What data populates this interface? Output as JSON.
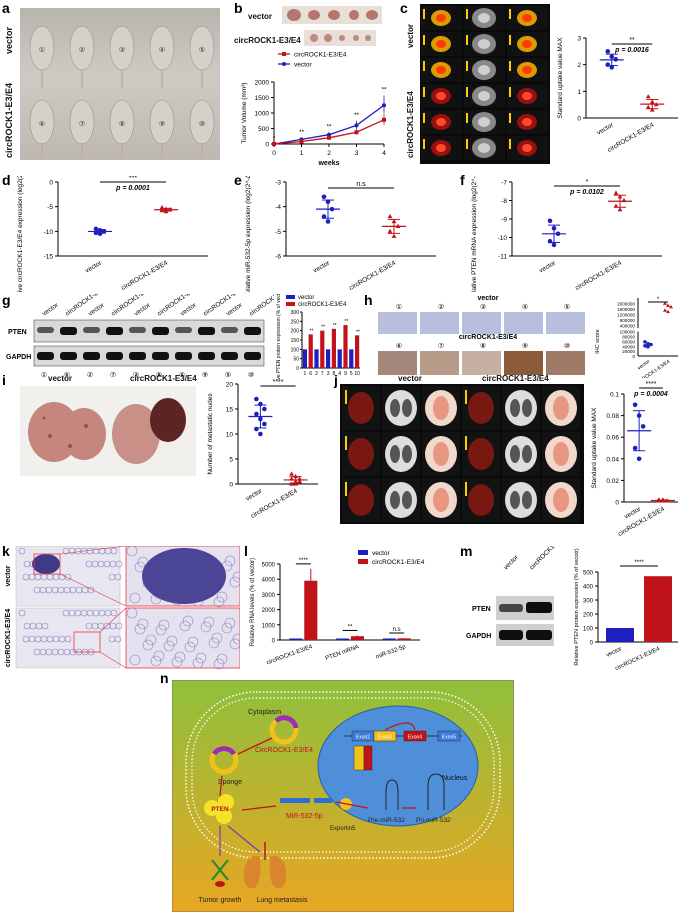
{
  "panel_labels": [
    "a",
    "b",
    "c",
    "d",
    "e",
    "f",
    "g",
    "h",
    "i",
    "j",
    "k",
    "l",
    "m",
    "n"
  ],
  "a": {
    "row_labels": [
      "vector",
      "circROCK1-E3/E4"
    ],
    "mouse_ids": [
      "①",
      "②",
      "③",
      "④",
      "⑤",
      "⑥",
      "⑦",
      "⑧",
      "⑨",
      "⑩"
    ]
  },
  "b": {
    "tumor_row_labels": [
      "vector",
      "circROCK1-E3/E4"
    ],
    "legend": [
      "circROCK1-E3/E4",
      "vector"
    ],
    "ylabel": "Tumor Volume (mm³)",
    "xlabel": "weeks",
    "sig": [
      "*",
      "**",
      "**",
      "**",
      "**"
    ]
  },
  "c": {
    "row_labels": [
      "vector",
      "circROCK1-E3/E4"
    ],
    "ylabel": "Standard uptake value MAX",
    "sig": "**",
    "p": "p = 0.0016",
    "x_ticks": [
      "vector",
      "circROCK1-E3/E4"
    ]
  },
  "d": {
    "ylabel": "Relative circROCK1-E3/E4 expression (log2(2^-ΔCt) method)",
    "sig": "***",
    "p": "p = 0.0001",
    "x_ticks": [
      "vector",
      "circROCK1-E3/E4"
    ]
  },
  "e": {
    "ylabel": "Relative miR-532-5p expression (log2(2^-ΔCt) method)",
    "sig": "n.s",
    "x_ticks": [
      "vector",
      "circROCK1-E3/E4"
    ]
  },
  "f": {
    "ylabel": "Relative PTEN mRNA expression (log2(2^-ΔCt) method)",
    "sig": "*",
    "p": "p = 0.0102",
    "x_ticks": [
      "vector",
      "circROCK1-E3/E4"
    ]
  },
  "g": {
    "lane_labels": [
      "vector",
      "circROCK1-E3/E4",
      "vector",
      "circROCK1-E3/E4",
      "vector",
      "circROCK1-E3/E4",
      "vector",
      "circROCK1-E3/E4",
      "vector",
      "circROCK1-E3/E4"
    ],
    "lane_ids": [
      "①",
      "⑥",
      "②",
      "⑦",
      "③",
      "⑧",
      "④",
      "⑨",
      "⑤",
      "⑩"
    ],
    "blots": [
      "PTEN",
      "GAPDH"
    ],
    "legend": [
      "vector",
      "circROCK1-E3/E4"
    ],
    "ylabel": "Relative PTEN protein expression (% of vector)",
    "x_ticks": [
      "1",
      "6",
      "2",
      "7",
      "3",
      "8",
      "4",
      "9",
      "5",
      "10"
    ]
  },
  "h": {
    "row_labels": [
      "vector",
      "circROCK1-E3/E4"
    ],
    "ids_top": [
      "①",
      "②",
      "③",
      "④",
      "⑤"
    ],
    "ids_bottom": [
      "⑥",
      "⑦",
      "⑧",
      "⑨",
      "⑩"
    ],
    "ylabel": "IHC score",
    "sig": "*",
    "x_ticks": [
      "vector",
      "circROCK1-E3/E4"
    ]
  },
  "i": {
    "col_labels": [
      "vector",
      "circROCK1-E3/E4"
    ],
    "ylabel": "Number of metastatic nudes",
    "sig": "****",
    "x_ticks": [
      "vector",
      "circROCK1-E3/E4"
    ]
  },
  "j": {
    "col_labels": [
      "vector",
      "circROCK1-E3/E4"
    ],
    "ylabel": "Standard uptake value MAX",
    "sig": "****",
    "p": "p = 0.0004",
    "x_ticks": [
      "vector",
      "circROCK1-E3/E4"
    ]
  },
  "k": {
    "row_labels": [
      "vector",
      "circROCK1-E3/E4"
    ]
  },
  "l": {
    "legend": [
      "vector",
      "circROCK1-E3/E4"
    ],
    "ylabel": "Relative RNA levels (% of vector)",
    "x_ticks": [
      "circROCK1-E3/E4",
      "PTEN mRNA",
      "miR-532-5p"
    ],
    "sig": [
      "****",
      "**",
      "n.s"
    ]
  },
  "m": {
    "lane_labels": [
      "vector",
      "circROCK1-E3/E4"
    ],
    "blots": [
      "PTEN",
      "GAPDH"
    ],
    "ylabel": "Relative PTEN protein expression (% of vecotr)",
    "sig": "****",
    "x_ticks": [
      "vector",
      "circROCK1-E3/E4"
    ]
  },
  "n": {
    "cytoplasm": "Cytoplasm",
    "nucleus": "Nucleus",
    "circ": "CircROCK1-E3/E4",
    "sponge": "Sponge",
    "mir": "MiR-532-5p",
    "exportin": "Exportin5",
    "pre": "Pre-miR-532",
    "pri": "Pri-miR-532",
    "pten": "PTEN",
    "exons": [
      "Exon2",
      "Exon3",
      "Exon4",
      "Exon5"
    ],
    "tumor": "Tumor growth",
    "lung": "Lung metastasis"
  },
  "chart_data": [
    {
      "type": "line",
      "panel": "b",
      "x": [
        0,
        1,
        2,
        3,
        4
      ],
      "xlabel": "weeks",
      "ylabel": "Tumor Volume (mm³)",
      "ylim": [
        0,
        2000
      ],
      "yticks": [
        0,
        500,
        1000,
        1500,
        2000
      ],
      "series": [
        {
          "name": "vector",
          "values": [
            0,
            150,
            300,
            600,
            1250
          ]
        },
        {
          "name": "circROCK1-E3/E4",
          "values": [
            0,
            80,
            200,
            380,
            780
          ]
        }
      ]
    },
    {
      "type": "scatter",
      "panel": "c",
      "categories": [
        "vector",
        "circROCK1-E3/E4"
      ],
      "ylim": [
        0,
        3
      ],
      "yticks": [
        0,
        1,
        2,
        3
      ],
      "series": [
        {
          "name": "vector",
          "values": [
            2.5,
            2.3,
            2.2,
            2.0,
            1.9
          ]
        },
        {
          "name": "circROCK1-E3/E4",
          "values": [
            0.8,
            0.6,
            0.5,
            0.4,
            0.3
          ]
        }
      ]
    },
    {
      "type": "scatter",
      "panel": "d",
      "categories": [
        "vector",
        "circROCK1-E3/E4"
      ],
      "ylim": [
        -15,
        0
      ],
      "yticks": [
        -15,
        -10,
        -5,
        0
      ],
      "series": [
        {
          "name": "vector",
          "values": [
            -9.5,
            -9.8,
            -10,
            -10.3,
            -10.5
          ]
        },
        {
          "name": "circROCK1-E3/E4",
          "values": [
            -5.2,
            -5.5,
            -5.6,
            -5.8,
            -6.0
          ]
        }
      ]
    },
    {
      "type": "scatter",
      "panel": "e",
      "categories": [
        "vector",
        "circROCK1-E3/E4"
      ],
      "ylim": [
        -6,
        -3
      ],
      "yticks": [
        -6,
        -5,
        -4,
        -3
      ],
      "series": [
        {
          "name": "vector",
          "values": [
            -3.6,
            -3.8,
            -4.1,
            -4.4,
            -4.6
          ]
        },
        {
          "name": "circROCK1-E3/E4",
          "values": [
            -4.4,
            -4.6,
            -4.8,
            -5.0,
            -5.2
          ]
        }
      ]
    },
    {
      "type": "scatter",
      "panel": "f",
      "categories": [
        "vector",
        "circROCK1-E3/E4"
      ],
      "ylim": [
        -11,
        -7
      ],
      "yticks": [
        -11,
        -10,
        -9,
        -8,
        -7
      ],
      "series": [
        {
          "name": "vector",
          "values": [
            -9.1,
            -9.5,
            -9.8,
            -10.2,
            -10.4
          ]
        },
        {
          "name": "circROCK1-E3/E4",
          "values": [
            -7.6,
            -7.8,
            -8.0,
            -8.3,
            -8.5
          ]
        }
      ]
    },
    {
      "type": "bar",
      "panel": "g",
      "categories": [
        "1",
        "6",
        "2",
        "7",
        "3",
        "8",
        "4",
        "9",
        "5",
        "10"
      ],
      "ylim": [
        0,
        300
      ],
      "yticks": [
        0,
        50,
        100,
        150,
        200,
        250,
        300
      ],
      "series": [
        {
          "name": "vector",
          "values": [
            100,
            null,
            100,
            null,
            100,
            null,
            100,
            null,
            100,
            null
          ]
        },
        {
          "name": "circROCK1-E3/E4",
          "values": [
            null,
            180,
            null,
            200,
            null,
            210,
            null,
            230,
            null,
            175
          ]
        }
      ],
      "sig": [
        "",
        "**",
        "",
        "**",
        "",
        "**",
        "",
        "**",
        "",
        "**"
      ]
    },
    {
      "type": "scatter",
      "panel": "h",
      "categories": [
        "vector",
        "circROCK1-E3/E4"
      ],
      "yticks": [
        0,
        20000,
        40000,
        60000,
        80000,
        100000,
        200000,
        400000,
        600000,
        800000,
        1000000,
        1200000,
        1400000,
        1600000,
        1800000,
        2000000,
        2200000,
        2400000,
        4000000
      ],
      "series": [
        {
          "name": "vector",
          "values": [
            58000,
            50000,
            47000,
            42000,
            38000
          ]
        },
        {
          "name": "circROCK1-E3/E4",
          "values": [
            2000000,
            1850000,
            1750000,
            1500000,
            1400000
          ]
        }
      ]
    },
    {
      "type": "scatter",
      "panel": "i",
      "categories": [
        "vector",
        "circROCK1-E3/E4"
      ],
      "ylim": [
        0,
        20
      ],
      "yticks": [
        0,
        5,
        10,
        15,
        20
      ],
      "series": [
        {
          "name": "vector",
          "values": [
            17,
            16,
            15,
            14,
            13,
            12,
            11,
            10
          ]
        },
        {
          "name": "circROCK1-E3/E4",
          "values": [
            2,
            1.5,
            1,
            1,
            0.5,
            0.5,
            0,
            0
          ]
        }
      ]
    },
    {
      "type": "scatter",
      "panel": "j",
      "categories": [
        "vector",
        "circROCK1-E3/E4"
      ],
      "ylim": [
        0,
        0.1
      ],
      "yticks": [
        0,
        0.02,
        0.04,
        0.06,
        0.08,
        0.1
      ],
      "series": [
        {
          "name": "vector",
          "values": [
            0.09,
            0.08,
            0.07,
            0.05,
            0.04
          ]
        },
        {
          "name": "circROCK1-E3/E4",
          "values": [
            0.002,
            0.002,
            0.001,
            0.001,
            0.001
          ]
        }
      ]
    },
    {
      "type": "bar",
      "panel": "l",
      "categories": [
        "circROCK1-E3/E4",
        "PTEN mRNA",
        "miR-532-5p"
      ],
      "ylim": [
        0,
        5000
      ],
      "yticks": [
        0,
        1000,
        2000,
        3000,
        4000,
        5000
      ],
      "series": [
        {
          "name": "vector",
          "values": [
            100,
            100,
            100
          ]
        },
        {
          "name": "circROCK1-E3/E4",
          "values": [
            3900,
            250,
            110
          ]
        }
      ]
    },
    {
      "type": "bar",
      "panel": "m",
      "categories": [
        "vector",
        "circROCK1-E3/E4"
      ],
      "ylim": [
        0,
        500
      ],
      "yticks": [
        0,
        100,
        200,
        300,
        400,
        500
      ],
      "series": [
        {
          "name": "vector",
          "values": [
            100,
            null
          ]
        },
        {
          "name": "circROCK1-E3/E4",
          "values": [
            null,
            470
          ]
        }
      ]
    }
  ]
}
